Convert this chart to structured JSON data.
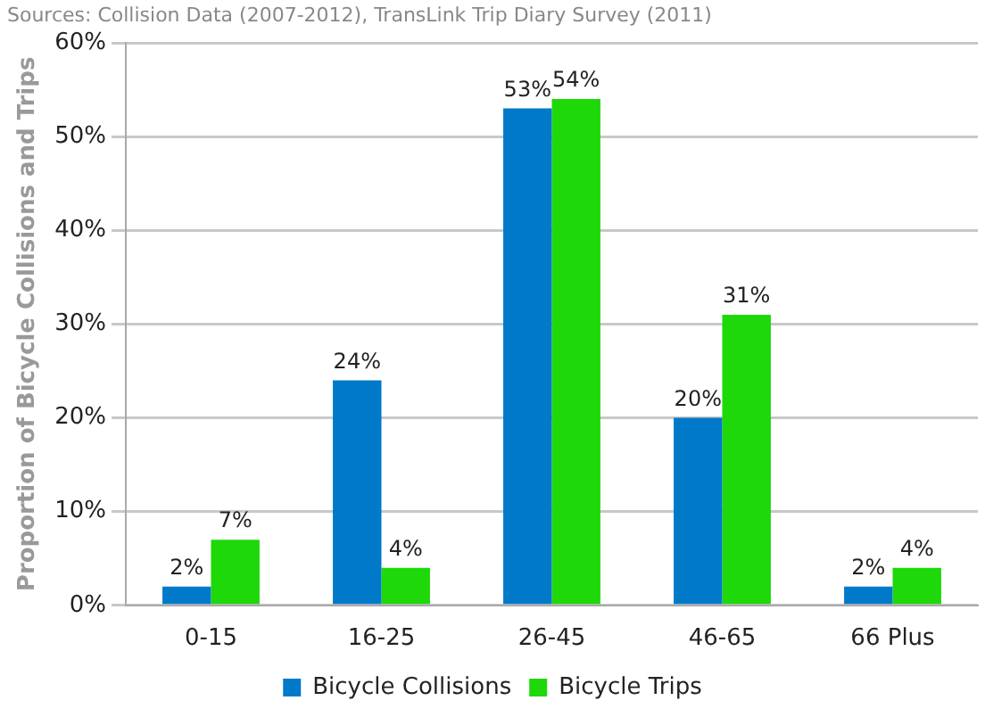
{
  "chart_data": {
    "type": "bar",
    "ylabel": "Proportion of Bicycle Collisions and Trips",
    "annotations": [
      "Sources: Collision Data (2007-2012), TransLink Trip Diary Survey (2011)"
    ],
    "categories": [
      "0-15",
      "16-25",
      "26-45",
      "46-65",
      "66 Plus"
    ],
    "series": [
      {
        "name": "Bicycle Collisions",
        "color": "#0079c8",
        "values": [
          2,
          24,
          53,
          20,
          2
        ],
        "value_labels": [
          "2%",
          "24%",
          "53%",
          "20%",
          "2%"
        ]
      },
      {
        "name": "Bicycle Trips",
        "color": "#1ed80a",
        "values": [
          7,
          4,
          54,
          31,
          4
        ],
        "value_labels": [
          "7%",
          "4%",
          "54%",
          "31%",
          "4%"
        ]
      }
    ],
    "ylim": [
      0,
      60
    ],
    "yticks": [
      {
        "value": 0,
        "label": "0%"
      },
      {
        "value": 10,
        "label": "10%"
      },
      {
        "value": 20,
        "label": "20%"
      },
      {
        "value": 30,
        "label": "30%"
      },
      {
        "value": 40,
        "label": "40%"
      },
      {
        "value": 50,
        "label": "50%"
      },
      {
        "value": 60,
        "label": "60%"
      }
    ],
    "grid": "y",
    "legend": "bottom"
  }
}
